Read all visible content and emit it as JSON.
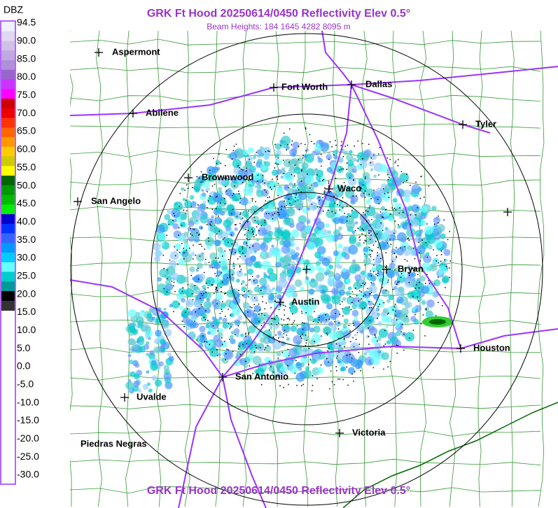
{
  "header": {
    "title": "GRK Ft Hood 20250614/0450 Reflectivity Elev 0.5°",
    "subtitle": "Beam Heights: 184 1645 4282 8095 m",
    "footer_title": "GRK Ft Hood 20250614/0450 Reflectivity Elev 0.5°"
  },
  "legend": {
    "unit": "DBZ",
    "labels": [
      "94.5",
      "90.0",
      "85.0",
      "80.0",
      "75.0",
      "70.0",
      "65.0",
      "60.0",
      "55.0",
      "50.0",
      "45.0",
      "40.0",
      "35.0",
      "30.0",
      "25.0",
      "20.0",
      "15.0",
      "10.0",
      "5.0",
      "0.0",
      "-5.0",
      "-10.0",
      "-15.0",
      "-20.0",
      "-25.0",
      "-30.0"
    ]
  },
  "cities": [
    {
      "label": "Aspermont"
    },
    {
      "label": "Fort Worth"
    },
    {
      "label": "Dallas"
    },
    {
      "label": "Abilene"
    },
    {
      "label": "Tyler"
    },
    {
      "label": "Brownwood"
    },
    {
      "label": "Waco"
    },
    {
      "label": "San Angelo"
    },
    {
      "label": "Bryan"
    },
    {
      "label": "Austin"
    },
    {
      "label": "Houston"
    },
    {
      "label": "San Antonio"
    },
    {
      "label": "Uvalde"
    },
    {
      "label": "Victoria"
    },
    {
      "label": "Piedras Negras"
    }
  ]
}
